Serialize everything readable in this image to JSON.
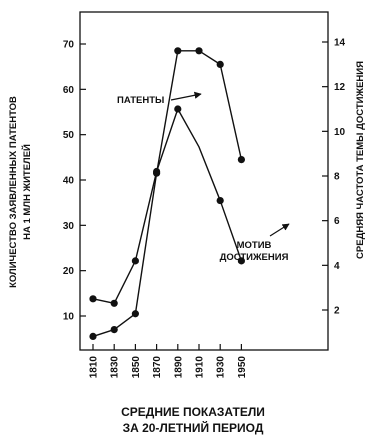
{
  "chart_data": {
    "type": "line",
    "title": "",
    "xlabel": [
      "СРЕДНИЕ ПОКАЗАТЕЛИ",
      "ЗА 20-ЛЕТНИЙ ПЕРИОД"
    ],
    "ylabel_left": [
      "КОЛИЧЕСТВО ЗАЯВЛЕННЫХ ПАТЕНТОВ",
      "НА 1 МЛН ЖИТЕЛЕЙ"
    ],
    "ylabel_right": "СРЕДНЯЯ ЧАСТОТА ТЕМЫ ДОСТИЖЕНИЯ",
    "x": [
      1810,
      1830,
      1850,
      1870,
      1890,
      1910,
      1930,
      1950
    ],
    "ylim_left": [
      0,
      75
    ],
    "yticks_left": [
      10,
      20,
      30,
      40,
      50,
      60,
      70
    ],
    "ylim_right": [
      0,
      15
    ],
    "yticks_right": [
      2,
      4,
      6,
      8,
      10,
      12,
      14
    ],
    "grid": false,
    "legend": "none",
    "series": [
      {
        "name": "ПАТЕНТЫ",
        "axis": "left",
        "x": [
          1810,
          1830,
          1850,
          1870,
          1890,
          1910,
          1930,
          1950
        ],
        "values": [
          5.5,
          7,
          10.5,
          41.5,
          68.5,
          68.5,
          65.5,
          44.5
        ],
        "markers": [
          true,
          true,
          true,
          true,
          true,
          true,
          true,
          true
        ]
      },
      {
        "name": "МОТИВ ДОСТИЖЕНИЯ",
        "axis": "right",
        "x": [
          1810,
          1830,
          1850,
          1870,
          1890,
          1910,
          1930,
          1950
        ],
        "values": [
          2.5,
          2.3,
          4.2,
          8.2,
          11.0,
          9.3,
          6.9,
          4.2
        ],
        "markers": [
          true,
          true,
          true,
          true,
          true,
          false,
          true,
          true
        ]
      }
    ],
    "annotations": [
      {
        "text": "ПАТЕНТЫ",
        "series": "ПАТЕНТЫ"
      },
      {
        "text": [
          "МОТИВ",
          "ДОСТИЖЕНИЯ"
        ],
        "series": "МОТИВ ДОСТИЖЕНИЯ"
      }
    ],
    "colors": {
      "line": "#111111",
      "marker": "#111111",
      "axis": "#111111"
    }
  }
}
